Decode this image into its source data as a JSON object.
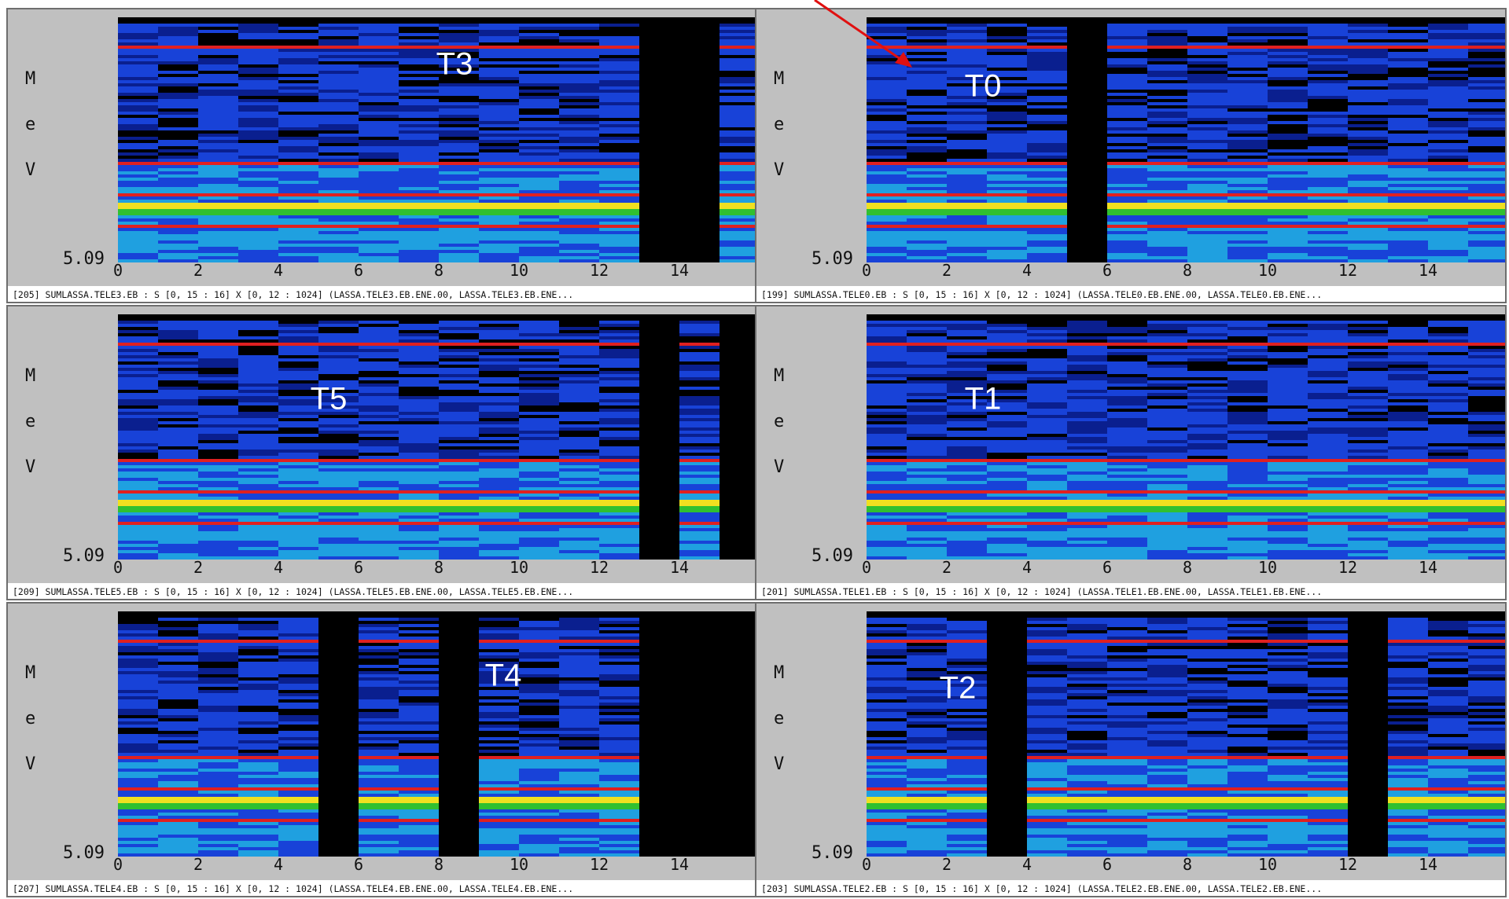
{
  "chart_data": [
    {
      "type": "heatmap",
      "panel_label": "T3",
      "caption": "[205] SUMLASSA.TELE3.EB : S [0, 15 : 16] X [0, 12 : 1024] (LASSA.TELE3.EB.ENE.00, LASSA.TELE3.EB.ENE...",
      "ylabel": "MeV",
      "y_min_label": "5.09",
      "xlim": [
        0,
        16
      ],
      "x_ticks": [
        "0",
        "2",
        "4",
        "6",
        "8",
        "10",
        "12",
        "14"
      ],
      "dead_strips": [
        13,
        14
      ],
      "colormap": [
        "#000000",
        "#0a1f8f",
        "#1842d8",
        "#1fa0e0",
        "#30c030",
        "#f0e020",
        "#e02020"
      ]
    },
    {
      "type": "heatmap",
      "panel_label": "T0",
      "caption": "[199] SUMLASSA.TELE0.EB : S [0, 15 : 16] X [0, 12 : 1024] (LASSA.TELE0.EB.ENE.00, LASSA.TELE0.EB.ENE...",
      "ylabel": "MeV",
      "y_min_label": "5.09",
      "xlim": [
        0,
        16
      ],
      "x_ticks": [
        "0",
        "2",
        "4",
        "6",
        "8",
        "10",
        "12",
        "14"
      ],
      "dead_strips": [
        5
      ],
      "colormap": [
        "#000000",
        "#0a1f8f",
        "#1842d8",
        "#1fa0e0",
        "#30c030",
        "#f0e020",
        "#e02020"
      ]
    },
    {
      "type": "heatmap",
      "panel_label": "T5",
      "caption": "[209] SUMLASSA.TELE5.EB : S [0, 15 : 16] X [0, 12 : 1024] (LASSA.TELE5.EB.ENE.00, LASSA.TELE5.EB.ENE...",
      "ylabel": "MeV",
      "y_min_label": "5.09",
      "xlim": [
        0,
        16
      ],
      "x_ticks": [
        "0",
        "2",
        "4",
        "6",
        "8",
        "10",
        "12",
        "14"
      ],
      "dead_strips": [
        13,
        15
      ],
      "colormap": [
        "#000000",
        "#0a1f8f",
        "#1842d8",
        "#1fa0e0",
        "#30c030",
        "#f0e020",
        "#e02020"
      ]
    },
    {
      "type": "heatmap",
      "panel_label": "T1",
      "caption": "[201] SUMLASSA.TELE1.EB : S [0, 15 : 16] X [0, 12 : 1024] (LASSA.TELE1.EB.ENE.00, LASSA.TELE1.EB.ENE...",
      "ylabel": "MeV",
      "y_min_label": "5.09",
      "xlim": [
        0,
        16
      ],
      "x_ticks": [
        "0",
        "2",
        "4",
        "6",
        "8",
        "10",
        "12",
        "14"
      ],
      "dead_strips": [],
      "colormap": [
        "#000000",
        "#0a1f8f",
        "#1842d8",
        "#1fa0e0",
        "#30c030",
        "#f0e020",
        "#e02020"
      ]
    },
    {
      "type": "heatmap",
      "panel_label": "T4",
      "caption": "[207] SUMLASSA.TELE4.EB : S [0, 15 : 16] X [0, 12 : 1024] (LASSA.TELE4.EB.ENE.00, LASSA.TELE4.EB.ENE...",
      "ylabel": "MeV",
      "y_min_label": "5.09",
      "xlim": [
        0,
        16
      ],
      "x_ticks": [
        "0",
        "2",
        "4",
        "6",
        "8",
        "10",
        "12",
        "14"
      ],
      "dead_strips": [
        5,
        8,
        13,
        14,
        15
      ],
      "colormap": [
        "#000000",
        "#0a1f8f",
        "#1842d8",
        "#1fa0e0",
        "#30c030",
        "#f0e020",
        "#e02020"
      ]
    },
    {
      "type": "heatmap",
      "panel_label": "T2",
      "caption": "[203] SUMLASSA.TELE2.EB : S [0, 15 : 16] X [0, 12 : 1024] (LASSA.TELE2.EB.ENE.00, LASSA.TELE2.EB.ENE...",
      "ylabel": "MeV",
      "y_min_label": "5.09",
      "xlim": [
        0,
        16
      ],
      "x_ticks": [
        "0",
        "2",
        "4",
        "6",
        "8",
        "10",
        "12",
        "14"
      ],
      "dead_strips": [
        3,
        12
      ],
      "colormap": [
        "#000000",
        "#0a1f8f",
        "#1842d8",
        "#1fa0e0",
        "#30c030",
        "#f0e020",
        "#e02020"
      ]
    }
  ]
}
